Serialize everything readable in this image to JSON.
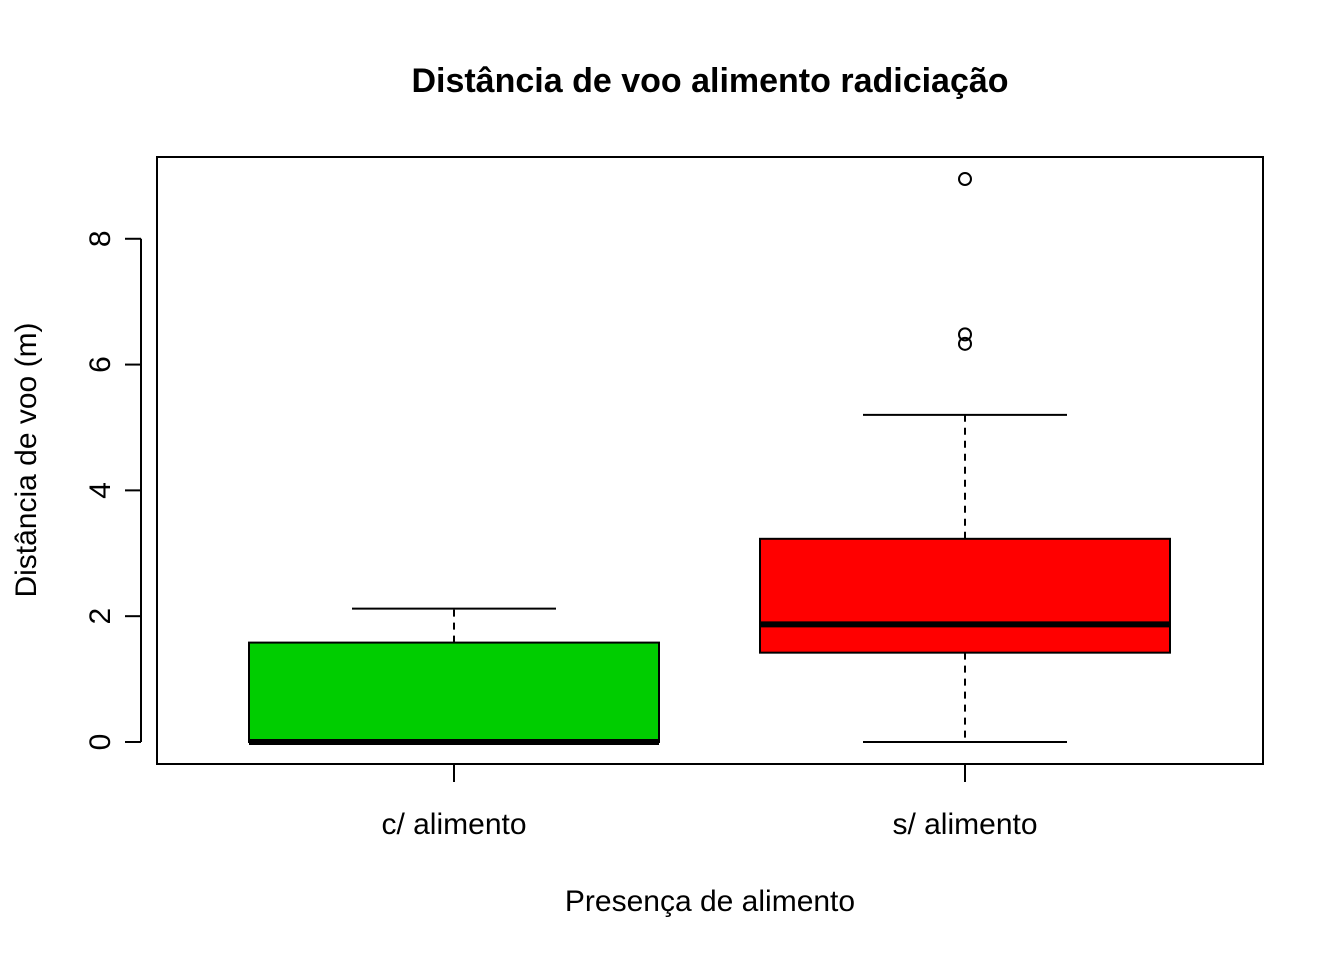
{
  "chart_data": {
    "type": "boxplot",
    "title": "Distância de voo alimento radiciação",
    "xlabel": "Presença de alimento",
    "ylabel": "Distância de voo (m)",
    "ylim": [
      -0.35,
      9.3
    ],
    "yticks": [
      0,
      2,
      4,
      6,
      8
    ],
    "grid": false,
    "categories": [
      "c/ alimento",
      "s/ alimento"
    ],
    "boxes": [
      {
        "category": "c/ alimento",
        "color": "#00CD00",
        "whisker_low": 0,
        "q1": 0,
        "median": 0,
        "q3": 1.58,
        "whisker_high": 2.12,
        "outliers": []
      },
      {
        "category": "s/ alimento",
        "color": "#FF0000",
        "whisker_low": 0,
        "q1": 1.42,
        "median": 1.87,
        "q3": 3.23,
        "whisker_high": 5.2,
        "outliers": [
          8.95,
          6.48,
          6.33
        ]
      }
    ]
  }
}
